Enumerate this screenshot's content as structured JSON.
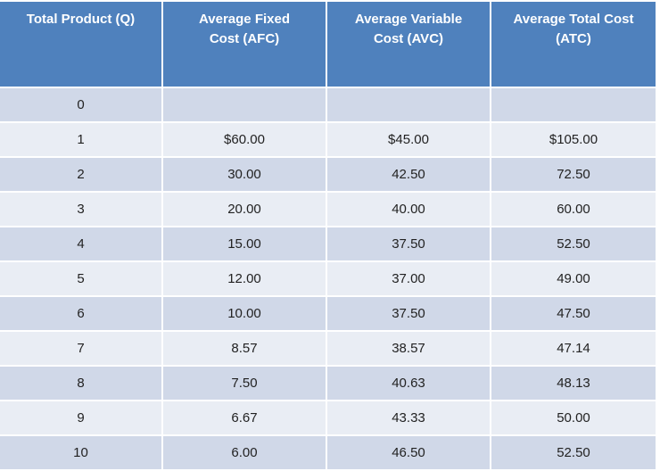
{
  "table": {
    "header": [
      "Total Product (Q)",
      "Average Fixed Cost (AFC)",
      "Average Variable Cost (AVC)",
      "Average Total Cost (ATC)"
    ],
    "rows": [
      [
        "0"
      ],
      [
        "1",
        "$60.00",
        "$45.00",
        "$105.00"
      ],
      [
        "2",
        "30.00",
        "42.50",
        "72.50"
      ],
      [
        "3",
        "20.00",
        "40.00",
        "60.00"
      ],
      [
        "4",
        "15.00",
        "37.50",
        "52.50"
      ],
      [
        "5",
        "12.00",
        "37.00",
        "49.00"
      ],
      [
        "6",
        "10.00",
        "37.50",
        "47.50"
      ],
      [
        "7",
        "8.57",
        "38.57",
        "47.14"
      ],
      [
        "8",
        "7.50",
        "40.63",
        "48.13"
      ],
      [
        "9",
        "6.67",
        "43.33",
        "50.00"
      ],
      [
        "10",
        "6.00",
        "46.50",
        "52.50"
      ]
    ]
  }
}
